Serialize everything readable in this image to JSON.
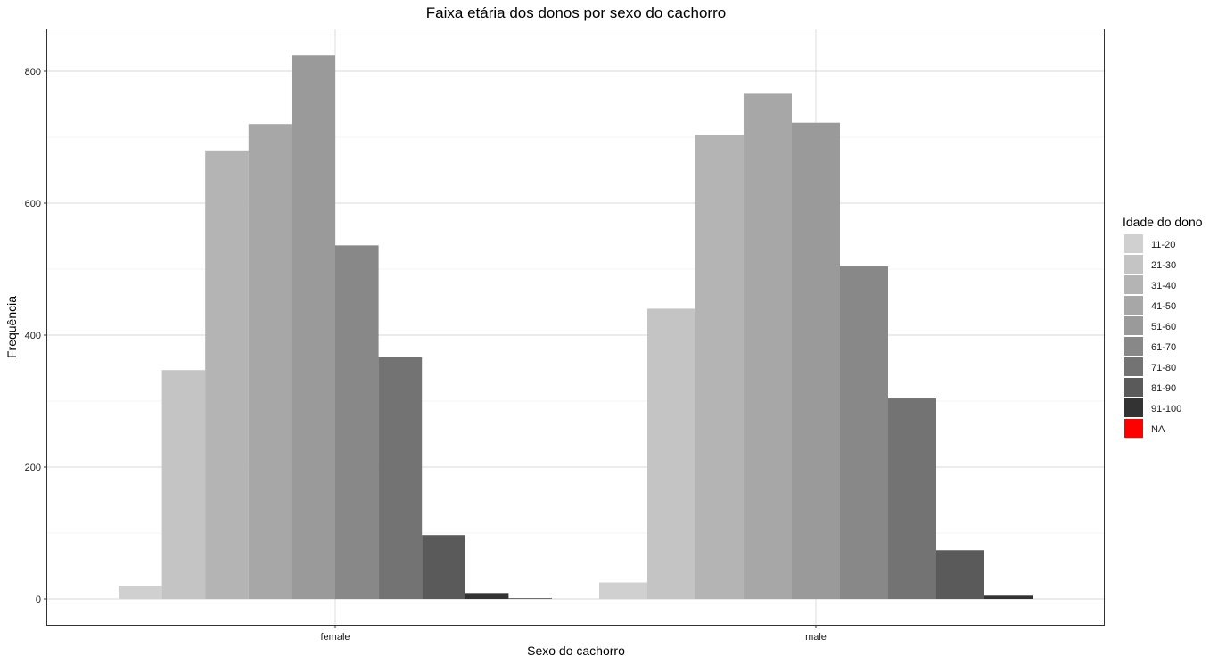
{
  "chart_data": {
    "type": "bar",
    "title": "Faixa etária dos donos por sexo do cachorro",
    "xlabel": "Sexo do cachorro",
    "ylabel": "Frequência",
    "ylim": [
      0,
      865
    ],
    "yticks": [
      "0",
      "200",
      "400",
      "600",
      "800"
    ],
    "grid": true,
    "legend_title": "Idade do dono",
    "legend_position": "right",
    "categories": [
      "female",
      "male"
    ],
    "series": [
      {
        "name": "11-20",
        "color": "#d0d0d0",
        "values": [
          20,
          25
        ]
      },
      {
        "name": "21-30",
        "color": "#c4c4c4",
        "values": [
          347,
          440
        ]
      },
      {
        "name": "31-40",
        "color": "#b4b4b4",
        "values": [
          680,
          703
        ]
      },
      {
        "name": "41-50",
        "color": "#a7a7a7",
        "values": [
          720,
          767
        ]
      },
      {
        "name": "51-60",
        "color": "#9a9a9a",
        "values": [
          824,
          722
        ]
      },
      {
        "name": "61-70",
        "color": "#888888",
        "values": [
          536,
          504
        ]
      },
      {
        "name": "71-80",
        "color": "#737373",
        "values": [
          367,
          304
        ]
      },
      {
        "name": "81-90",
        "color": "#5a5a5a",
        "values": [
          97,
          74
        ]
      },
      {
        "name": "91-100",
        "color": "#333333",
        "values": [
          9,
          5
        ]
      },
      {
        "name": "NA",
        "color": "#ff0000",
        "values": [
          1,
          null
        ]
      }
    ]
  }
}
